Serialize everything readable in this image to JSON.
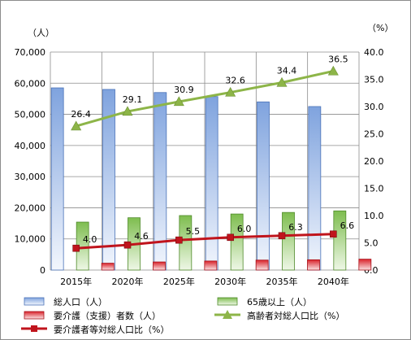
{
  "chart_data": {
    "type": "bar",
    "categories": [
      "2015年",
      "2020年",
      "2025年",
      "2030年",
      "2035年",
      "2040年"
    ],
    "left_unit": "（人）",
    "right_unit": "（%）",
    "left_ylim": [
      0,
      70000
    ],
    "right_ylim": [
      0,
      40
    ],
    "left_ticks": [
      "0",
      "10,000",
      "20,000",
      "30,000",
      "40,000",
      "50,000",
      "60,000",
      "70,000"
    ],
    "right_ticks": [
      "0.0",
      "5.0",
      "10.0",
      "15.0",
      "20.0",
      "25.0",
      "30.0",
      "35.0",
      "40.0"
    ],
    "grid": true,
    "legend_position": "bottom",
    "series": [
      {
        "name": "総人口（人）",
        "type": "bar",
        "axis": "left",
        "color": "#8fb0e0",
        "values": [
          58500,
          58000,
          57000,
          55700,
          54000,
          52500
        ]
      },
      {
        "name": "65歳以上（人）",
        "type": "bar",
        "axis": "left",
        "color": "#8fc665",
        "values": [
          15400,
          16800,
          17500,
          18000,
          18500,
          19000
        ]
      },
      {
        "name": "要介護（支援）者数（人）",
        "type": "bar",
        "axis": "left",
        "color": "#e0404a",
        "values": [
          2200,
          2600,
          2900,
          3200,
          3300,
          3500
        ]
      },
      {
        "name": "高齢者対総人口比（%）",
        "type": "line",
        "axis": "right",
        "color": "#8db548",
        "marker": "triangle",
        "values": [
          26.4,
          29.1,
          30.9,
          32.6,
          34.4,
          36.5
        ],
        "labels": [
          "26.4",
          "29.1",
          "30.9",
          "32.6",
          "34.4",
          "36.5"
        ]
      },
      {
        "name": "要介護者等対総人口比（%）",
        "type": "line",
        "axis": "right",
        "color": "#c0141c",
        "marker": "square",
        "values": [
          4.0,
          4.6,
          5.5,
          6.0,
          6.3,
          6.6
        ],
        "labels": [
          "4.0",
          "4.6",
          "5.5",
          "6.0",
          "6.3",
          "6.6"
        ]
      }
    ]
  }
}
